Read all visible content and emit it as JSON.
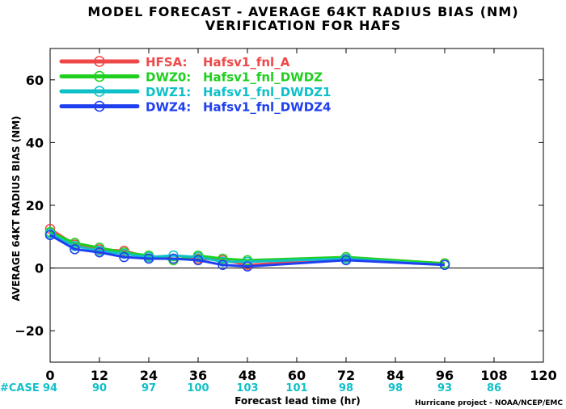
{
  "chart_data": {
    "type": "line",
    "title": "MODEL FORECAST - AVERAGE 64KT RADIUS BIAS (NM)",
    "subtitle": "VERIFICATION FOR HAFS",
    "xlabel": "Forecast lead time (hr)",
    "ylabel": "AVERAGE 64KT RADIUS BIAS (NM)",
    "xlim": [
      0,
      120
    ],
    "ylim": [
      -30,
      70
    ],
    "xticks": [
      0,
      12,
      24,
      36,
      48,
      60,
      72,
      84,
      96,
      108,
      120
    ],
    "yticks": [
      -20,
      0,
      20,
      40,
      60
    ],
    "zero_line": true,
    "grid": false,
    "legend_position": "top-left",
    "case_label": "#CASE",
    "cases": [
      {
        "x": 0,
        "n": "94"
      },
      {
        "x": 12,
        "n": "90"
      },
      {
        "x": 24,
        "n": "97"
      },
      {
        "x": 36,
        "n": "100"
      },
      {
        "x": 48,
        "n": "103"
      },
      {
        "x": 60,
        "n": "101"
      },
      {
        "x": 72,
        "n": "98"
      },
      {
        "x": 84,
        "n": "98"
      },
      {
        "x": 96,
        "n": "93"
      },
      {
        "x": 108,
        "n": "86"
      }
    ],
    "series": [
      {
        "prefix": "HFSA:",
        "name": "Hafsv1_fnl_A",
        "color": "#f04848",
        "x": [
          0,
          6,
          12,
          18,
          24,
          30,
          36,
          42,
          48,
          72,
          96
        ],
        "y": [
          12.5,
          7.5,
          6.0,
          5.5,
          3.5,
          3.0,
          3.0,
          2.5,
          1.0,
          3.0,
          1.5
        ]
      },
      {
        "prefix": "DWZ0:",
        "name": "Hafsv1_fnl_DWDZ",
        "color": "#20d020",
        "x": [
          0,
          6,
          12,
          18,
          24,
          30,
          36,
          42,
          48,
          72,
          96
        ],
        "y": [
          11.5,
          8.0,
          6.5,
          5.0,
          4.0,
          2.5,
          4.0,
          3.0,
          2.5,
          3.5,
          1.5
        ]
      },
      {
        "prefix": "DWZ1:",
        "name": "Hafsv1_fnl_DWDZ1",
        "color": "#10c0c8",
        "x": [
          0,
          6,
          12,
          18,
          24,
          30,
          36,
          42,
          48,
          72,
          96
        ],
        "y": [
          11.0,
          7.0,
          5.5,
          4.5,
          3.5,
          4.0,
          3.5,
          2.0,
          2.0,
          3.0,
          1.0
        ]
      },
      {
        "prefix": "DWZ4:",
        "name": "Hafsv1_fnl_DWDZ4",
        "color": "#2040f0",
        "x": [
          0,
          6,
          12,
          18,
          24,
          30,
          36,
          42,
          48,
          72,
          96
        ],
        "y": [
          10.5,
          6.0,
          5.0,
          3.5,
          3.0,
          3.0,
          2.5,
          1.0,
          0.5,
          2.5,
          1.0
        ]
      }
    ]
  },
  "credit": "Hurricane project - NOAA/NCEP/EMC"
}
